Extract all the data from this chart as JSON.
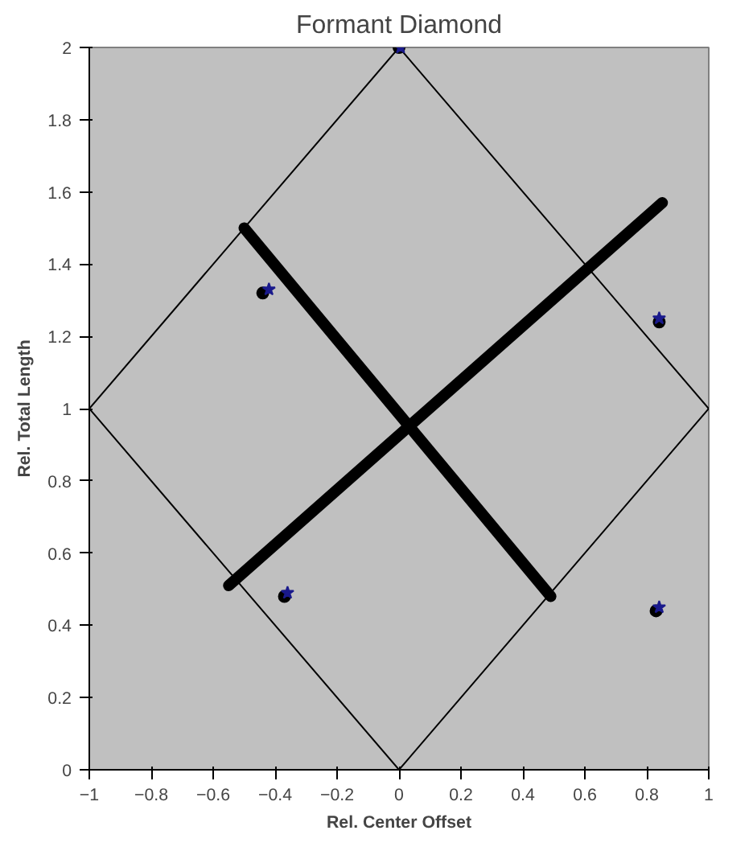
{
  "chart_data": {
    "type": "line",
    "title": "Formant Diamond",
    "xlabel": "Rel. Center Offset",
    "ylabel": "Rel. Total Length",
    "xlim": [
      -1,
      1
    ],
    "ylim": [
      0,
      2
    ],
    "xticks": [
      -1,
      -0.8,
      -0.6,
      -0.4,
      -0.2,
      0,
      0.2,
      0.4,
      0.6,
      0.8,
      1
    ],
    "yticks": [
      0,
      0.2,
      0.4,
      0.6,
      0.8,
      1,
      1.2,
      1.4,
      1.6,
      1.8,
      2
    ],
    "grid": false,
    "marker": "none",
    "line_style": "solid",
    "series": [
      {
        "color": "#000000",
        "x": [
          -1,
          0,
          1
        ],
        "values": [
          1,
          2,
          1
        ]
      },
      {
        "color": "#000000",
        "x": [
          -1,
          0,
          1
        ],
        "values": [
          1,
          0,
          1
        ]
      },
      {
        "color": "#000000",
        "x": [
          -0.55,
          0.85
        ],
        "values": [
          0.51,
          1.57
        ]
      },
      {
        "color": "#000000",
        "x": [
          -0.5,
          0.49
        ],
        "values": [
          1.5,
          0.48
        ]
      },
      {
        "type": "scatter",
        "color": "#000000",
        "marker": "circle",
        "x": [
          -0.44,
          -0.37,
          0.83,
          0.84,
          0
        ],
        "values": [
          1.32,
          0.48,
          0.44,
          1.24,
          2
        ]
      },
      {
        "type": "scatter",
        "color": "#1a1a8c",
        "marker": "star",
        "x": [
          -0.42,
          -0.36,
          0.84,
          0.84,
          0.005
        ],
        "values": [
          1.33,
          0.49,
          0.45,
          1.25,
          2
        ]
      }
    ]
  }
}
